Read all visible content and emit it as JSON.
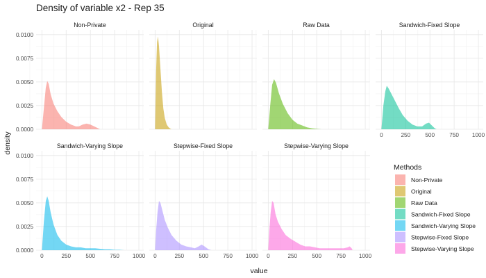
{
  "chart_data": {
    "type": "area",
    "title": "Density of variable x2 - Rep 35",
    "xlabel": "value",
    "ylabel": "density",
    "xlim": [
      -60,
      1050
    ],
    "ylim": [
      0,
      0.0105
    ],
    "x_ticks": [
      0,
      250,
      500,
      750,
      1000
    ],
    "y_ticks": [
      0,
      0.0025,
      0.005,
      0.0075,
      0.01
    ],
    "x_tick_labels": [
      "0",
      "250",
      "500",
      "750",
      "1000"
    ],
    "y_tick_labels": [
      "0.0000",
      "0.0025",
      "0.0050",
      "0.0075",
      "0.0100"
    ],
    "grid": true,
    "legend": {
      "title": "Methods",
      "position": "right"
    },
    "series": [
      {
        "name": "Non-Private",
        "color": "#F8766D",
        "points": [
          [
            0,
            0
          ],
          [
            20,
            0.0022
          ],
          [
            40,
            0.0044
          ],
          [
            55,
            0.0051
          ],
          [
            70,
            0.0048
          ],
          [
            90,
            0.0037
          ],
          [
            120,
            0.0027
          ],
          [
            160,
            0.0019
          ],
          [
            200,
            0.0013
          ],
          [
            250,
            0.0008
          ],
          [
            300,
            0.0005
          ],
          [
            350,
            0.0003
          ],
          [
            380,
            0.0003
          ],
          [
            420,
            0.0005
          ],
          [
            460,
            0.0006
          ],
          [
            500,
            0.0005
          ],
          [
            540,
            0.0003
          ],
          [
            580,
            0.0001
          ],
          [
            600,
            0
          ]
        ]
      },
      {
        "name": "Original",
        "color": "#C49A00",
        "points": [
          [
            0,
            0
          ],
          [
            10,
            0.006
          ],
          [
            20,
            0.0092
          ],
          [
            30,
            0.0098
          ],
          [
            40,
            0.0088
          ],
          [
            55,
            0.0064
          ],
          [
            70,
            0.004
          ],
          [
            85,
            0.0022
          ],
          [
            100,
            0.0012
          ],
          [
            120,
            0.0005
          ],
          [
            140,
            0.0002
          ],
          [
            160,
            5e-05
          ],
          [
            170,
            0
          ]
        ]
      },
      {
        "name": "Raw Data",
        "color": "#53B400",
        "points": [
          [
            0,
            0
          ],
          [
            20,
            0.0025
          ],
          [
            40,
            0.0047
          ],
          [
            60,
            0.0053
          ],
          [
            80,
            0.0049
          ],
          [
            110,
            0.0038
          ],
          [
            150,
            0.0027
          ],
          [
            200,
            0.0017
          ],
          [
            250,
            0.001
          ],
          [
            300,
            0.0006
          ],
          [
            350,
            0.0004
          ],
          [
            400,
            0.0002
          ],
          [
            450,
            0.0001
          ],
          [
            500,
            5e-05
          ],
          [
            550,
            0
          ]
        ]
      },
      {
        "name": "Sandwich-Fixed Slope",
        "color": "#00C094",
        "points": [
          [
            0,
            0
          ],
          [
            20,
            0.0025
          ],
          [
            40,
            0.004
          ],
          [
            55,
            0.0046
          ],
          [
            75,
            0.0043
          ],
          [
            100,
            0.0038
          ],
          [
            140,
            0.003
          ],
          [
            180,
            0.0022
          ],
          [
            220,
            0.0015
          ],
          [
            270,
            0.0009
          ],
          [
            320,
            0.0005
          ],
          [
            370,
            0.0003
          ],
          [
            420,
            0.0003
          ],
          [
            460,
            0.0006
          ],
          [
            490,
            0.0007
          ],
          [
            520,
            0.0004
          ],
          [
            550,
            0.0001
          ],
          [
            570,
            0
          ]
        ]
      },
      {
        "name": "Sandwich-Varying Slope",
        "color": "#00B6EB",
        "points": [
          [
            0,
            0
          ],
          [
            20,
            0.003
          ],
          [
            40,
            0.0052
          ],
          [
            55,
            0.0057
          ],
          [
            70,
            0.0052
          ],
          [
            90,
            0.004
          ],
          [
            120,
            0.0027
          ],
          [
            160,
            0.0016
          ],
          [
            200,
            0.001
          ],
          [
            250,
            0.0006
          ],
          [
            300,
            0.0004
          ],
          [
            350,
            0.0003
          ],
          [
            400,
            0.0003
          ],
          [
            450,
            0.0002
          ],
          [
            500,
            0.0002
          ],
          [
            550,
            0.0002
          ],
          [
            600,
            0.00015
          ],
          [
            650,
            0.0001
          ],
          [
            700,
            0.0001
          ],
          [
            750,
            5e-05
          ],
          [
            800,
            5e-05
          ],
          [
            850,
            0
          ]
        ]
      },
      {
        "name": "Stepwise-Fixed Slope",
        "color": "#A58AFF",
        "points": [
          [
            0,
            0
          ],
          [
            10,
            0.002
          ],
          [
            25,
            0.004
          ],
          [
            40,
            0.0052
          ],
          [
            55,
            0.005
          ],
          [
            75,
            0.0042
          ],
          [
            100,
            0.0032
          ],
          [
            130,
            0.0024
          ],
          [
            170,
            0.0016
          ],
          [
            220,
            0.001
          ],
          [
            270,
            0.0006
          ],
          [
            320,
            0.0004
          ],
          [
            370,
            0.0003
          ],
          [
            410,
            0.0002
          ],
          [
            450,
            0.0004
          ],
          [
            480,
            0.0006
          ],
          [
            510,
            0.0004
          ],
          [
            550,
            0.0001
          ],
          [
            580,
            0
          ]
        ]
      },
      {
        "name": "Stepwise-Varying Slope",
        "color": "#FB61D7",
        "points": [
          [
            0,
            0
          ],
          [
            10,
            0.002
          ],
          [
            25,
            0.004
          ],
          [
            40,
            0.0052
          ],
          [
            55,
            0.005
          ],
          [
            75,
            0.0038
          ],
          [
            100,
            0.003
          ],
          [
            140,
            0.0022
          ],
          [
            180,
            0.0016
          ],
          [
            230,
            0.0012
          ],
          [
            280,
            0.0009
          ],
          [
            330,
            0.0006
          ],
          [
            380,
            0.0004
          ],
          [
            430,
            0.0004
          ],
          [
            480,
            0.0003
          ],
          [
            530,
            0.0002
          ],
          [
            580,
            0.0002
          ],
          [
            630,
            0.0002
          ],
          [
            680,
            0.0002
          ],
          [
            730,
            0.0002
          ],
          [
            780,
            0.0002
          ],
          [
            820,
            0.0003
          ],
          [
            840,
            0.0004
          ],
          [
            860,
            0.0002
          ],
          [
            870,
            0
          ]
        ]
      }
    ]
  }
}
